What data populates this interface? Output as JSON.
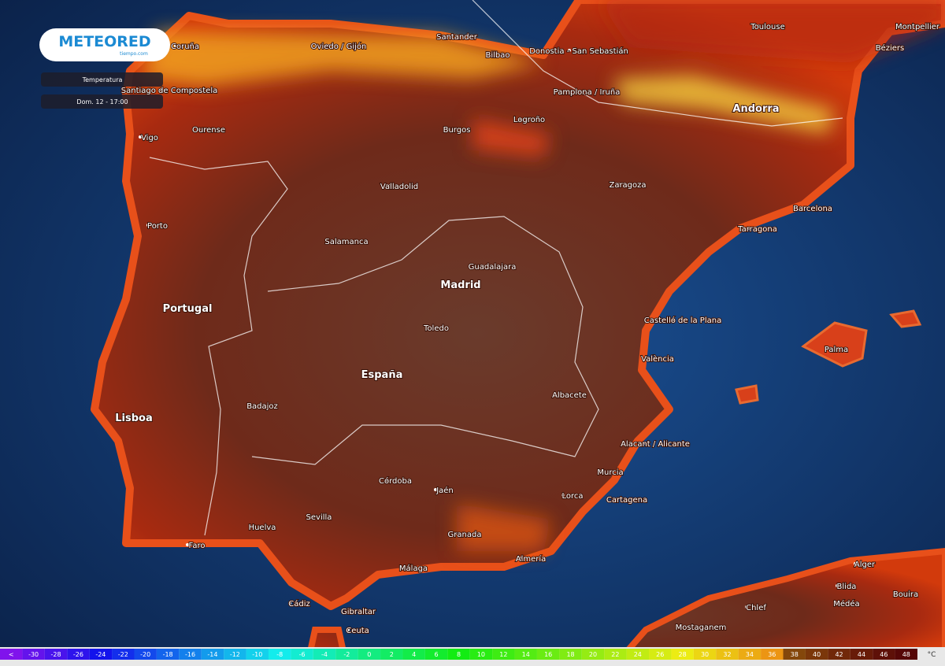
{
  "header": {
    "logo": "METEORED",
    "logo_sub": "tiempo.com",
    "layer": "Temperatura",
    "time": "Dom. 12 - 17:00"
  },
  "map": {
    "places": [
      "Coruña",
      "Oviedo / Gijón",
      "Santander",
      "Bilbao",
      "Donostia - San Sebastián",
      "Toulouse",
      "Montpellier",
      "Béziers",
      "Santiago de Compostela",
      "Ourense",
      "Vigo",
      "Pamplona / Iruña",
      "Logroño",
      "Burgos",
      "Andorra",
      "Valladolid",
      "Zaragoza",
      "Barcelona",
      "Porto",
      "Tarragona",
      "Salamanca",
      "Guadalajara",
      "Madrid",
      "Portugal",
      "Castelló de la Plana",
      "Toledo",
      "Palma",
      "València",
      "España",
      "Albacete",
      "Lisboa",
      "Badajoz",
      "Alacant / Alicante",
      "Murcia",
      "Córdoba",
      "Jaén",
      "Lorca",
      "Cartagena",
      "Sevilla",
      "Huelva",
      "Granada",
      "Faro",
      "Almería",
      "Málaga",
      "Alger",
      "Cádiz",
      "Gibraltar",
      "Ceuta",
      "Blida",
      "Chlef",
      "Médéa",
      "Mostaganem",
      "Bouira"
    ]
  },
  "color_scale": {
    "labels": [
      "<",
      "-30",
      "-28",
      "-26",
      "-24",
      "-22",
      "-20",
      "-18",
      "-16",
      "-14",
      "-12",
      "-10",
      "-8",
      "-6",
      "-4",
      "-2",
      "0",
      "2",
      "4",
      "6",
      "8",
      "10",
      "12",
      "14",
      "16",
      "18",
      "20",
      "22",
      "24",
      "26",
      "28",
      "30",
      "32",
      "34",
      "36",
      "38",
      "40",
      "42",
      "44",
      "46",
      "48"
    ],
    "unit": "°C"
  }
}
